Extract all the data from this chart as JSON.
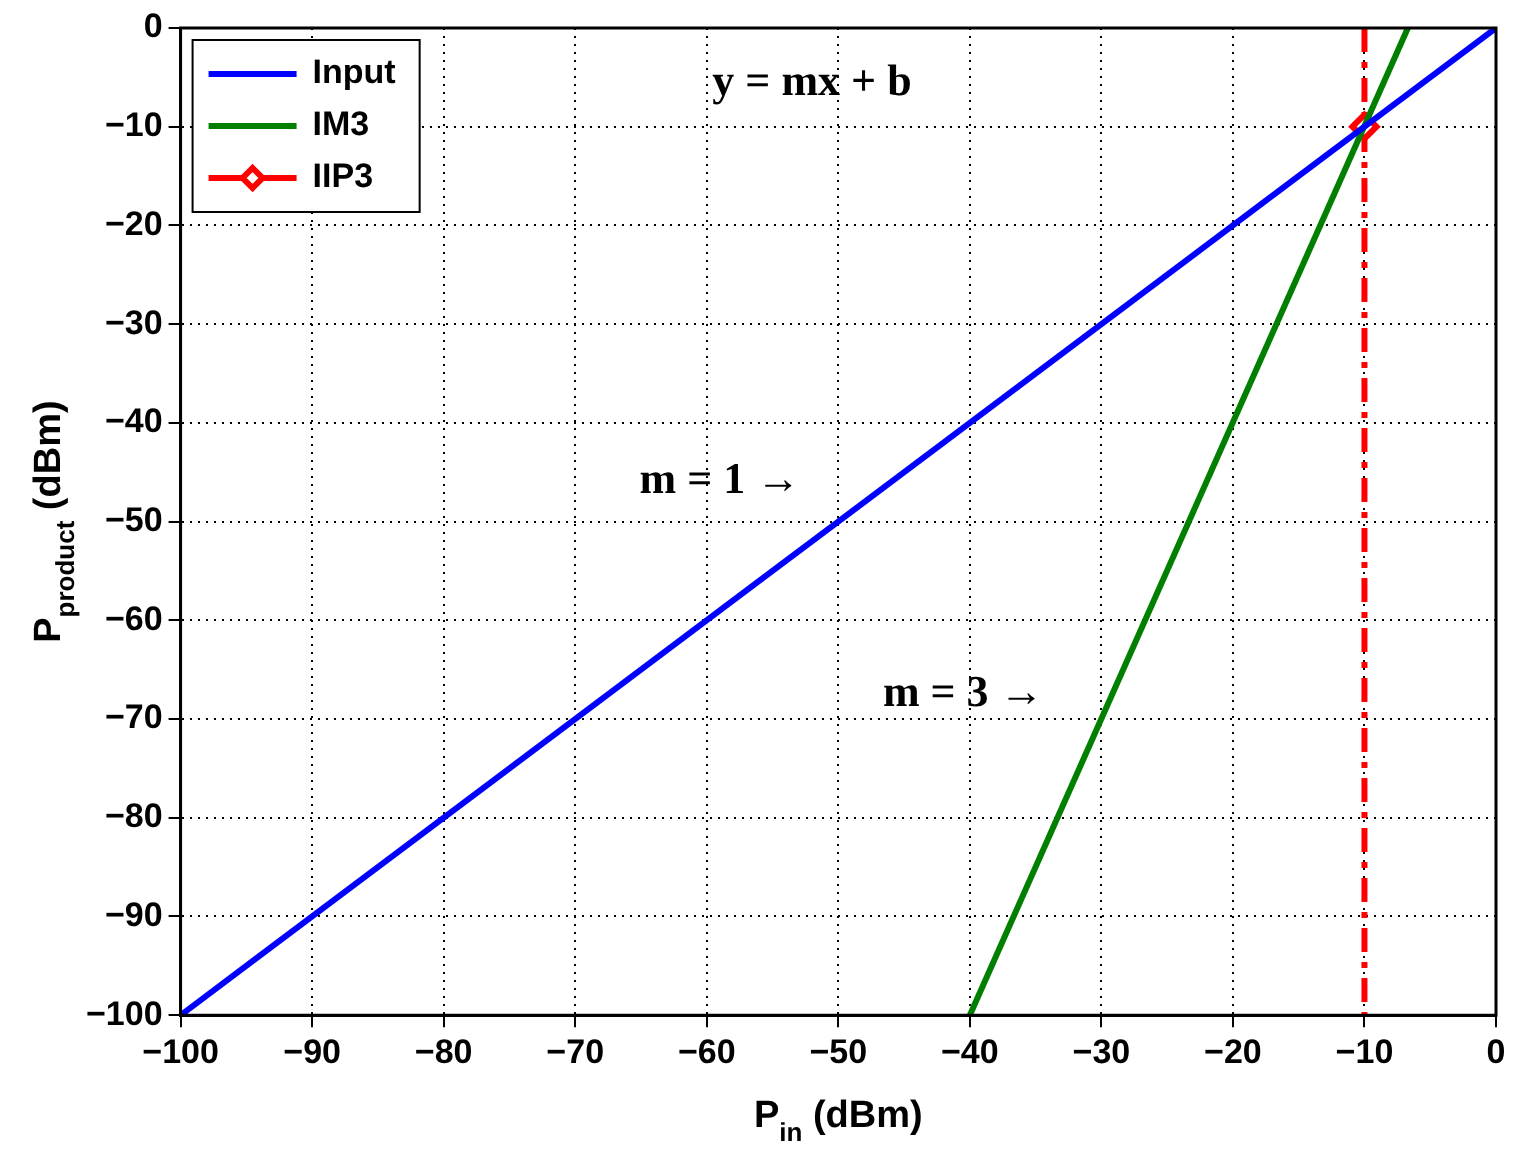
{
  "chart_data": {
    "type": "line",
    "xlabel": "P$_{in}$ (dBm)",
    "ylabel": "P$_{product}$ (dBm)",
    "xlim": [
      -100,
      0
    ],
    "xticks": [
      -100,
      -90,
      -80,
      -70,
      -60,
      -50,
      -40,
      -30,
      -20,
      -10,
      0
    ],
    "ylim": [
      -100,
      0
    ],
    "yticks": [
      -100,
      -90,
      -80,
      -70,
      -60,
      -50,
      -40,
      -30,
      -20,
      -10,
      0
    ],
    "grid": true,
    "legend": "top left",
    "series": [
      {
        "name": "Input",
        "type": "line",
        "color": "#0000ff",
        "x": [
          -100,
          0
        ],
        "values": [
          -100,
          0
        ],
        "marker": "none"
      },
      {
        "name": "IM3",
        "type": "line",
        "color": "#007f00",
        "x": [
          -40,
          -6.7
        ],
        "values": [
          -100,
          0
        ],
        "marker": "none"
      },
      {
        "name": "IIP3",
        "type": "scatter",
        "color": "#ff0000",
        "x": [
          -10
        ],
        "values": [
          -10
        ],
        "marker": "diamond"
      }
    ],
    "ref_lines": [
      {
        "axis": "x",
        "value": -10,
        "color": "#ff0000",
        "line_style": "dashed"
      }
    ],
    "annotations": [
      "y = mx + b",
      "m = 1 →",
      "m = 3 →"
    ]
  }
}
